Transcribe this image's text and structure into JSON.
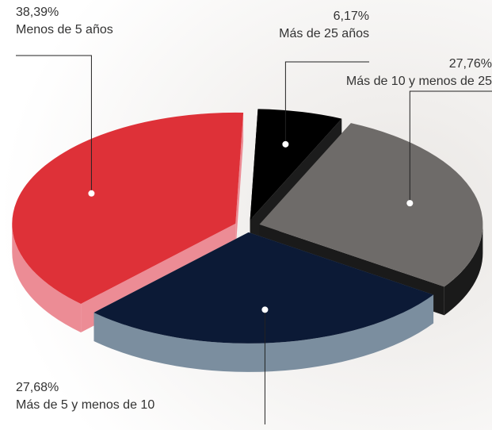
{
  "chart_data": {
    "type": "pie",
    "categories": [
      "Más de 25 años",
      "Más de 10 y menos de 25",
      "Más de 5 y menos de 10",
      "Menos de 5 años"
    ],
    "values": [
      6.17,
      27.76,
      27.68,
      38.39
    ],
    "value_labels": [
      "6,17%",
      "27,76%",
      "27,68%",
      "38,39%"
    ],
    "colors": [
      "#000000",
      "#6e6b69",
      "#0c1a36",
      "#de3138"
    ],
    "side_colors": [
      "#1c1c1c",
      "#1a1a1a",
      "#7b8e9f",
      "#ec8c95"
    ]
  }
}
